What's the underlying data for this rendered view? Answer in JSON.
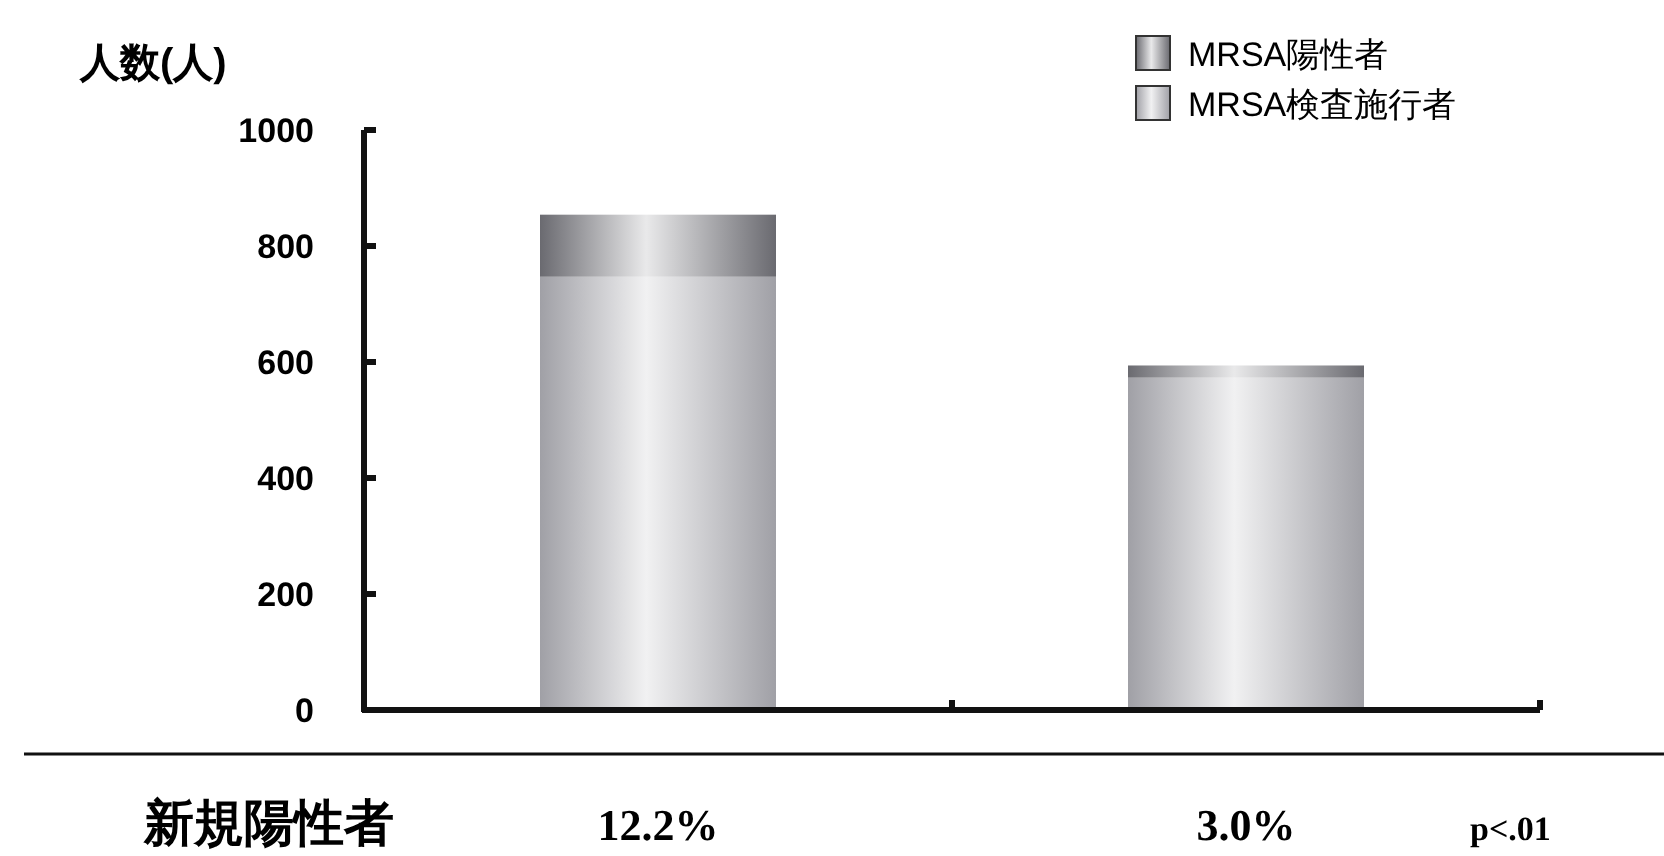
{
  "chart_data": {
    "type": "bar",
    "stacked": true,
    "ylabel": "人数(人)",
    "categories": [
      null,
      null
    ],
    "series": [
      {
        "name": "MRSA検査施行者",
        "color": "#a0a0a6",
        "values": [
          747,
          573
        ]
      },
      {
        "name": "MRSA陽性者",
        "color": "#6a6a70",
        "values": [
          107,
          21
        ]
      }
    ],
    "ylim": [
      0,
      1000
    ],
    "yticks": [
      0,
      200,
      400,
      600,
      800,
      1000
    ],
    "tick_labels": "y",
    "grid": false,
    "legend": "top right",
    "annotations": [
      "新規陽性者",
      "12.2%",
      "3.0%",
      "p<.01"
    ]
  }
}
